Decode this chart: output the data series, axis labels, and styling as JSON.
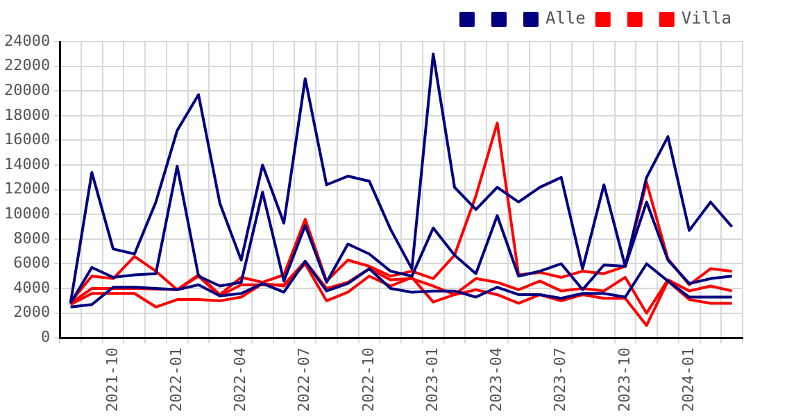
{
  "chart_data": {
    "type": "line",
    "categories": [
      null,
      null,
      "2021-10",
      null,
      null,
      "2022-01",
      null,
      null,
      "2022-04",
      null,
      null,
      "2022-07",
      null,
      null,
      "2022-10",
      null,
      null,
      "2023-01",
      null,
      null,
      "2023-04",
      null,
      null,
      "2023-07",
      null,
      null,
      "2023-10",
      null,
      null,
      "2024-01",
      null,
      null
    ],
    "series": [
      {
        "color": "#000080",
        "values": [
          2800,
          13400,
          7200,
          6800,
          11000,
          16800,
          19700,
          10900,
          6300,
          14000,
          9300,
          21000,
          12400,
          13100,
          12700,
          8800,
          5600,
          23000,
          12200,
          10400,
          12200,
          11000,
          12200,
          13000,
          5600,
          12400,
          5800,
          13000,
          16300,
          8700,
          11000,
          9000
        ]
      },
      {
        "color": "#000080",
        "values": [
          2800,
          5700,
          4900,
          5100,
          5200,
          13900,
          5000,
          4200,
          4500,
          11800,
          4600,
          9100,
          4500,
          7600,
          6800,
          5400,
          5000,
          8900,
          6700,
          5200,
          9900,
          5000,
          5400,
          6000,
          3900,
          5900,
          5800,
          11000,
          6300,
          4400,
          4800,
          5000
        ]
      },
      {
        "name": "Alle",
        "color": "#000080",
        "values": [
          2500,
          2700,
          4100,
          4100,
          4000,
          3900,
          4300,
          3400,
          3600,
          4400,
          3700,
          6200,
          3800,
          4400,
          5600,
          4000,
          3700,
          3800,
          3800,
          3300,
          4100,
          3500,
          3500,
          3200,
          3600,
          3600,
          3300,
          6000,
          4600,
          3300,
          3300,
          3300
        ]
      },
      {
        "color": "#ff0000",
        "values": [
          2900,
          5000,
          4800,
          6600,
          5400,
          3900,
          5100,
          3500,
          4900,
          4500,
          5100,
          9600,
          4600,
          6300,
          5800,
          5000,
          5400,
          4800,
          6700,
          11500,
          17400,
          5100,
          5300,
          4900,
          5400,
          5200,
          5800,
          12600,
          6400,
          4300,
          5600,
          5400
        ]
      },
      {
        "color": "#ff0000",
        "values": [
          2800,
          4000,
          4000,
          4000,
          null,
          3900,
          5000,
          3400,
          4300,
          4300,
          4300,
          6200,
          4000,
          4500,
          5600,
          4700,
          4800,
          4200,
          3500,
          4800,
          4500,
          3900,
          4600,
          3800,
          4000,
          3800,
          4900,
          2000,
          4700,
          3800,
          4200,
          3800
        ]
      },
      {
        "name": "Villa",
        "color": "#ff0000",
        "values": [
          2700,
          3600,
          3600,
          3600,
          2500,
          3100,
          3100,
          3000,
          3300,
          4400,
          4200,
          6000,
          3000,
          3700,
          5000,
          4200,
          4900,
          2900,
          3500,
          3900,
          3500,
          2800,
          3500,
          3000,
          3500,
          3200,
          3200,
          1000,
          4600,
          3100,
          2800,
          2800
        ]
      }
    ],
    "ylim": [
      0,
      24000
    ],
    "yticks": [
      0,
      2000,
      4000,
      6000,
      8000,
      10000,
      12000,
      14000,
      16000,
      18000,
      20000,
      22000,
      24000
    ],
    "grid": true,
    "legend": "top right",
    "marker": "none",
    "line_style": "solid"
  }
}
